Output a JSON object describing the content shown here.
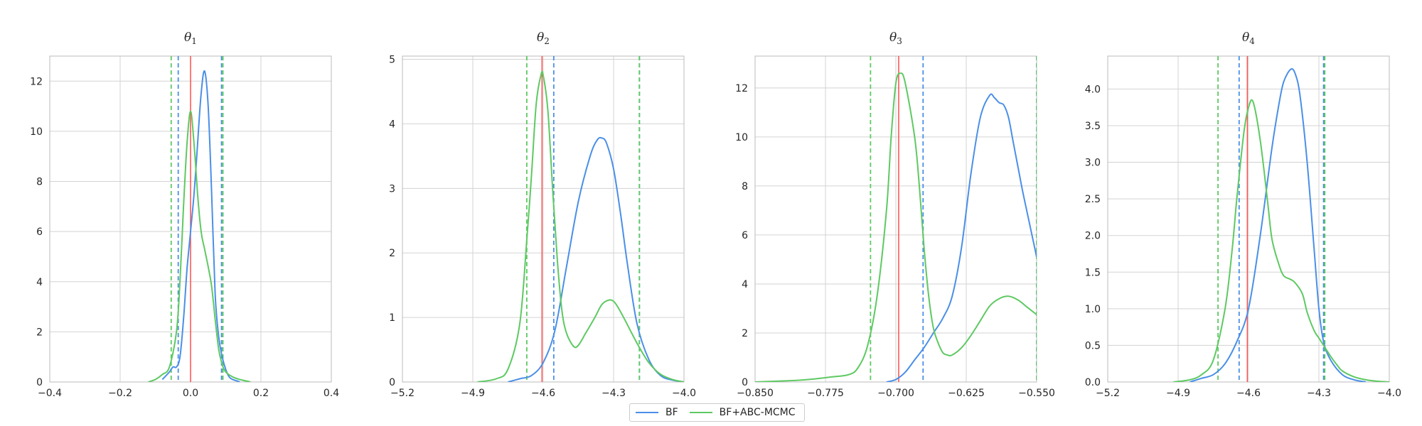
{
  "colors": {
    "bf": "#4a8fe7",
    "abc": "#5ec962",
    "truth": "#ff4d4d",
    "grid": "#d3d3d3",
    "axis": "#bbbbbb"
  },
  "legend": {
    "bf_label": "BF",
    "abc_label": "BF+ABC-MCMC",
    "placement": "bottom-center"
  },
  "chart_data": [
    {
      "type": "line",
      "title": {
        "symbol": "θ",
        "subscript": "1"
      },
      "xlim": [
        -0.4,
        0.4
      ],
      "ylim": [
        0,
        13
      ],
      "xticks": [
        -0.4,
        -0.2,
        0.0,
        0.2,
        0.4
      ],
      "xtick_labels": [
        "−0.4",
        "−0.2",
        "0.0",
        "0.2",
        "0.4"
      ],
      "yticks": [
        0,
        2,
        4,
        6,
        8,
        10,
        12
      ],
      "ytick_labels": [
        "0",
        "2",
        "4",
        "6",
        "8",
        "10",
        "12"
      ],
      "grid": true,
      "true_value": 0.0,
      "series": [
        {
          "name": "BF",
          "color_key": "bf",
          "x": [
            -0.08,
            -0.06,
            -0.05,
            -0.04,
            -0.03,
            -0.02,
            -0.01,
            0.0,
            0.01,
            0.02,
            0.03,
            0.04,
            0.05,
            0.06,
            0.07,
            0.08,
            0.09,
            0.1,
            0.11,
            0.12,
            0.13,
            0.14
          ],
          "y": [
            0.1,
            0.4,
            0.6,
            0.6,
            1.0,
            2.5,
            4.5,
            6.0,
            7.5,
            9.5,
            11.5,
            12.4,
            11.0,
            7.5,
            3.5,
            1.8,
            1.0,
            0.5,
            0.2,
            0.1,
            0.05,
            0.0
          ],
          "interval": [
            -0.035,
            0.088
          ]
        },
        {
          "name": "BF+ABC-MCMC",
          "color_key": "abc",
          "x": [
            -0.12,
            -0.1,
            -0.08,
            -0.06,
            -0.04,
            -0.03,
            -0.02,
            -0.01,
            0.0,
            0.01,
            0.02,
            0.03,
            0.04,
            0.05,
            0.06,
            0.07,
            0.08,
            0.09,
            0.1,
            0.12,
            0.14,
            0.17
          ],
          "y": [
            0.0,
            0.1,
            0.3,
            0.6,
            2.0,
            4.0,
            7.0,
            9.5,
            10.8,
            9.5,
            7.5,
            6.0,
            5.3,
            4.6,
            3.8,
            2.5,
            1.3,
            0.7,
            0.4,
            0.2,
            0.1,
            0.0
          ],
          "interval": [
            -0.055,
            0.092
          ]
        }
      ]
    },
    {
      "type": "line",
      "title": {
        "symbol": "θ",
        "subscript": "2"
      },
      "xlim": [
        -5.2,
        -4.0
      ],
      "ylim": [
        0,
        5.05
      ],
      "xticks": [
        -5.2,
        -4.9,
        -4.6,
        -4.3,
        -4.0
      ],
      "xtick_labels": [
        "−5.2",
        "−4.9",
        "−4.6",
        "−4.3",
        "−4.0"
      ],
      "yticks": [
        0,
        1,
        2,
        3,
        4,
        5
      ],
      "ytick_labels": [
        "0",
        "1",
        "2",
        "3",
        "4",
        "5"
      ],
      "grid": true,
      "true_value": -4.605,
      "series": [
        {
          "name": "BF",
          "color_key": "bf",
          "x": [
            -4.75,
            -4.7,
            -4.65,
            -4.6,
            -4.55,
            -4.5,
            -4.45,
            -4.4,
            -4.37,
            -4.35,
            -4.33,
            -4.3,
            -4.27,
            -4.24,
            -4.2,
            -4.15,
            -4.1,
            -4.05,
            -4.0
          ],
          "y": [
            0.0,
            0.05,
            0.1,
            0.3,
            0.8,
            1.8,
            2.8,
            3.5,
            3.75,
            3.78,
            3.7,
            3.3,
            2.6,
            1.8,
            0.9,
            0.35,
            0.1,
            0.03,
            0.0
          ],
          "interval": [
            -4.555,
            -4.19
          ]
        },
        {
          "name": "BF+ABC-MCMC",
          "color_key": "abc",
          "x": [
            -4.88,
            -4.8,
            -4.75,
            -4.7,
            -4.67,
            -4.65,
            -4.63,
            -4.61,
            -4.6,
            -4.58,
            -4.56,
            -4.54,
            -4.52,
            -4.5,
            -4.47,
            -4.45,
            -4.42,
            -4.38,
            -4.35,
            -4.32,
            -4.3,
            -4.28,
            -4.25,
            -4.2,
            -4.15,
            -4.1,
            -4.05,
            -4.0
          ],
          "y": [
            0.0,
            0.05,
            0.2,
            0.9,
            2.2,
            3.2,
            4.3,
            4.75,
            4.75,
            4.2,
            3.0,
            1.9,
            1.1,
            0.75,
            0.55,
            0.57,
            0.75,
            1.0,
            1.2,
            1.27,
            1.25,
            1.15,
            0.95,
            0.6,
            0.3,
            0.12,
            0.04,
            0.0
          ],
          "interval": [
            -4.67,
            -4.19
          ]
        }
      ]
    },
    {
      "type": "line",
      "title": {
        "symbol": "θ",
        "subscript": "3"
      },
      "xlim": [
        -0.85,
        -0.55
      ],
      "ylim": [
        0,
        13.3
      ],
      "xticks": [
        -0.85,
        -0.775,
        -0.7,
        -0.625,
        -0.55
      ],
      "xtick_labels": [
        "−0.850",
        "−0.775",
        "−0.700",
        "−0.625",
        "−0.550"
      ],
      "yticks": [
        0,
        2,
        4,
        6,
        8,
        10,
        12
      ],
      "ytick_labels": [
        "0",
        "2",
        "4",
        "6",
        "8",
        "10",
        "12"
      ],
      "grid": true,
      "true_value": -0.697,
      "series": [
        {
          "name": "BF",
          "color_key": "bf",
          "x": [
            -0.71,
            -0.7,
            -0.69,
            -0.68,
            -0.67,
            -0.66,
            -0.65,
            -0.64,
            -0.63,
            -0.62,
            -0.61,
            -0.6,
            -0.595,
            -0.59,
            -0.585,
            -0.58,
            -0.575,
            -0.57,
            -0.565,
            -0.56,
            -0.555,
            -0.55
          ],
          "y": [
            0.0,
            0.1,
            0.4,
            0.9,
            1.4,
            2.0,
            2.6,
            3.5,
            5.5,
            8.5,
            10.8,
            11.7,
            11.6,
            11.4,
            11.3,
            10.8,
            9.8,
            8.8,
            7.8,
            6.9,
            6.0,
            5.1
          ],
          "interval": [
            -0.671,
            -0.55
          ]
        },
        {
          "name": "BF+ABC-MCMC",
          "color_key": "abc",
          "x": [
            -0.85,
            -0.8,
            -0.77,
            -0.75,
            -0.74,
            -0.73,
            -0.72,
            -0.71,
            -0.705,
            -0.7,
            -0.695,
            -0.69,
            -0.68,
            -0.675,
            -0.67,
            -0.665,
            -0.66,
            -0.655,
            -0.65,
            -0.645,
            -0.64,
            -0.63,
            -0.62,
            -0.61,
            -0.6,
            -0.59,
            -0.58,
            -0.57,
            -0.56,
            -0.55
          ],
          "y": [
            0.0,
            0.08,
            0.2,
            0.3,
            0.6,
            1.5,
            3.5,
            7.0,
            10.0,
            12.2,
            12.6,
            12.2,
            10.0,
            8.0,
            5.5,
            3.5,
            2.2,
            1.6,
            1.2,
            1.1,
            1.1,
            1.4,
            1.9,
            2.5,
            3.1,
            3.4,
            3.5,
            3.35,
            3.05,
            2.75
          ],
          "interval": [
            -0.727,
            -0.55
          ]
        }
      ]
    },
    {
      "type": "line",
      "title": {
        "symbol": "θ",
        "subscript": "4"
      },
      "xlim": [
        -5.2,
        -4.0
      ],
      "ylim": [
        0,
        4.45
      ],
      "xticks": [
        -5.2,
        -4.9,
        -4.6,
        -4.3,
        -4.0
      ],
      "xtick_labels": [
        "−5.2",
        "−4.9",
        "−4.6",
        "−4.3",
        "−4.0"
      ],
      "yticks": [
        0.0,
        0.5,
        1.0,
        1.5,
        2.0,
        2.5,
        3.0,
        3.5,
        4.0
      ],
      "ytick_labels": [
        "0.0",
        "0.5",
        "1.0",
        "1.5",
        "2.0",
        "2.5",
        "3.0",
        "3.5",
        "4.0"
      ],
      "grid": true,
      "true_value": -4.605,
      "series": [
        {
          "name": "BF",
          "color_key": "bf",
          "x": [
            -4.85,
            -4.8,
            -4.75,
            -4.7,
            -4.65,
            -4.6,
            -4.55,
            -4.5,
            -4.47,
            -4.45,
            -4.42,
            -4.4,
            -4.38,
            -4.35,
            -4.32,
            -4.3,
            -4.28,
            -4.25,
            -4.2,
            -4.15,
            -4.1
          ],
          "y": [
            0.0,
            0.05,
            0.1,
            0.25,
            0.55,
            1.0,
            2.0,
            3.2,
            3.8,
            4.1,
            4.27,
            4.2,
            3.9,
            3.0,
            1.8,
            1.0,
            0.55,
            0.3,
            0.1,
            0.03,
            0.0
          ],
          "interval": [
            -4.64,
            -4.28
          ]
        },
        {
          "name": "BF+ABC-MCMC",
          "color_key": "abc",
          "x": [
            -4.92,
            -4.85,
            -4.8,
            -4.75,
            -4.7,
            -4.67,
            -4.65,
            -4.62,
            -4.6,
            -4.58,
            -4.55,
            -4.52,
            -4.5,
            -4.47,
            -4.45,
            -4.42,
            -4.4,
            -4.37,
            -4.35,
            -4.32,
            -4.3,
            -4.27,
            -4.25,
            -4.22,
            -4.2,
            -4.15,
            -4.1,
            -4.05,
            -4.0
          ],
          "y": [
            0.0,
            0.03,
            0.1,
            0.3,
            1.0,
            1.8,
            2.5,
            3.4,
            3.75,
            3.82,
            3.3,
            2.5,
            1.95,
            1.6,
            1.45,
            1.4,
            1.35,
            1.2,
            0.95,
            0.7,
            0.6,
            0.45,
            0.35,
            0.22,
            0.15,
            0.07,
            0.03,
            0.01,
            0.0
          ],
          "interval": [
            -4.73,
            -4.275
          ]
        }
      ]
    }
  ]
}
